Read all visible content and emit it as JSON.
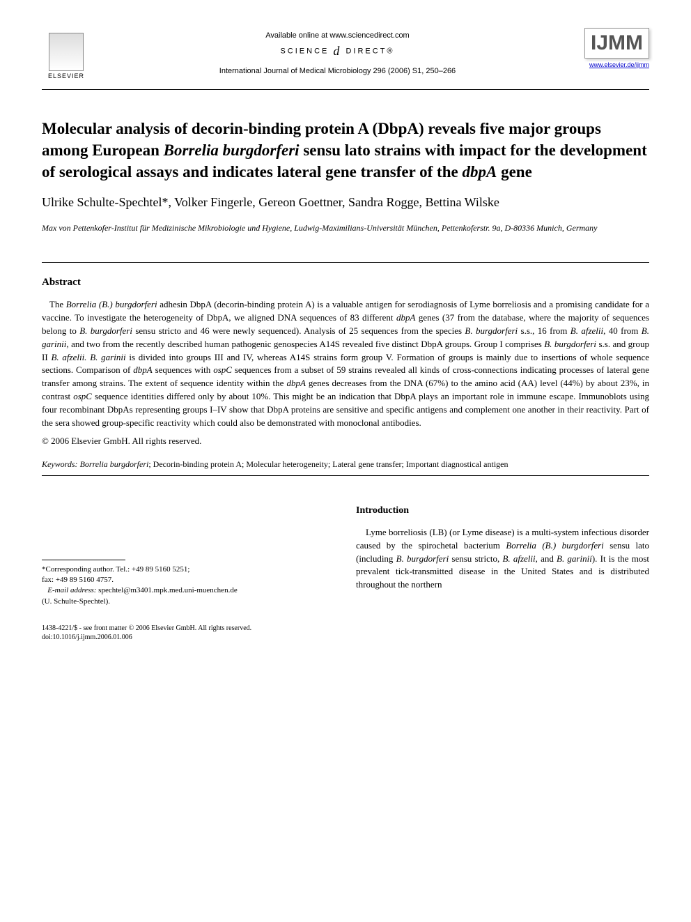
{
  "header": {
    "available_online": "Available online at www.sciencedirect.com",
    "science_direct_left": "SCIENCE",
    "science_direct_right": "DIRECT®",
    "journal_citation": "International Journal of Medical Microbiology 296 (2006) S1, 250–266",
    "elsevier_label": "ELSEVIER",
    "ijmm_label": "IJMM",
    "ijmm_url": "www.elsevier.de/ijmm"
  },
  "title": {
    "line1": "Molecular analysis of decorin-binding protein A (DbpA) reveals five major groups among European ",
    "ital1": "Borrelia burgdorferi",
    "line2": " sensu lato strains with impact for the development of serological assays and indicates lateral gene transfer of the ",
    "ital2": "dbpA",
    "line3": " gene"
  },
  "authors": "Ulrike Schulte-Spechtel*, Volker Fingerle, Gereon Goettner, Sandra Rogge, Bettina Wilske",
  "affiliation": "Max von Pettenkofer-Institut für Medizinische Mikrobiologie und Hygiene, Ludwig-Maximilians-Universität München, Pettenkoferstr. 9a, D-80336 Munich, Germany",
  "abstract": {
    "heading": "Abstract",
    "p1a": "The ",
    "p1_ital1": "Borrelia (B.) burgdorferi",
    "p1b": " adhesin DbpA (decorin-binding protein A) is a valuable antigen for serodiagnosis of Lyme borreliosis and a promising candidate for a vaccine. To investigate the heterogeneity of DbpA, we aligned DNA sequences of 83 different ",
    "p1_ital2": "dbpA",
    "p1c": " genes (37 from the database, where the majority of sequences belong to ",
    "p1_ital3": "B. burgdorferi",
    "p1d": " sensu stricto and 46 were newly sequenced). Analysis of 25 sequences from the species ",
    "p1_ital4": "B. burgdorferi",
    "p1e": " s.s., 16 from ",
    "p1_ital5": "B. afzelii",
    "p1f": ", 40 from ",
    "p1_ital6": "B. garinii",
    "p1g": ", and two from the recently described human pathogenic genospecies A14S revealed five distinct DbpA groups. Group I comprises ",
    "p1_ital7": "B. burgdorferi",
    "p1h": " s.s. and group II ",
    "p1_ital8": "B. afzelii. B. garinii",
    "p1i": " is divided into groups III and IV, whereas A14S strains form group V. Formation of groups is mainly due to insertions of whole sequence sections. Comparison of ",
    "p1_ital9": "dbpA",
    "p1j": " sequences with ",
    "p1_ital10": "ospC",
    "p1k": " sequences from a subset of 59 strains revealed all kinds of cross-connections indicating processes of lateral gene transfer among strains. The extent of sequence identity within the ",
    "p1_ital11": "dbpA",
    "p1l": " genes decreases from the DNA (67%) to the amino acid (AA) level (44%) by about 23%, in contrast ",
    "p1_ital12": "ospC",
    "p1m": " sequence identities differed only by about 10%. This might be an indication that DbpA plays an important role in immune escape. Immunoblots using four recombinant DbpAs representing groups I–IV show that DbpA proteins are sensitive and specific antigens and complement one another in their reactivity. Part of the sera showed group-specific reactivity which could also be demonstrated with monoclonal antibodies.",
    "copyright": "© 2006 Elsevier GmbH. All rights reserved."
  },
  "keywords": {
    "label": "Keywords: ",
    "ital1": "Borrelia burgdorferi",
    "rest": "; Decorin-binding protein A; Molecular heterogeneity; Lateral gene transfer; Important diagnostical antigen"
  },
  "footnote": {
    "corr_label": "*Corresponding author. Tel.: +49 89 5160 5251;",
    "fax": "fax: +49 89 5160 4757.",
    "email_label": "E-mail address:",
    "email": " spechtel@m3401.mpk.med.uni-muenchen.de",
    "email_name": "(U. Schulte-Spechtel)."
  },
  "intro": {
    "heading": "Introduction",
    "p1a": "Lyme borreliosis (LB) (or Lyme disease) is a multi-system infectious disorder caused by the spirochetal bacterium ",
    "p1_ital1": "Borrelia (B.) burgdorferi",
    "p1b": " sensu lato (including ",
    "p1_ital2": "B. burgdorferi",
    "p1c": " sensu stricto, ",
    "p1_ital3": "B. afzelii",
    "p1d": ", and ",
    "p1_ital4": "B. garinii",
    "p1e": "). It is the most prevalent tick-transmitted disease in the United States and is distributed throughout the northern"
  },
  "bottom": {
    "issn": "1438-4221/$ - see front matter © 2006 Elsevier GmbH. All rights reserved.",
    "doi": "doi:10.1016/j.ijmm.2006.01.006"
  }
}
